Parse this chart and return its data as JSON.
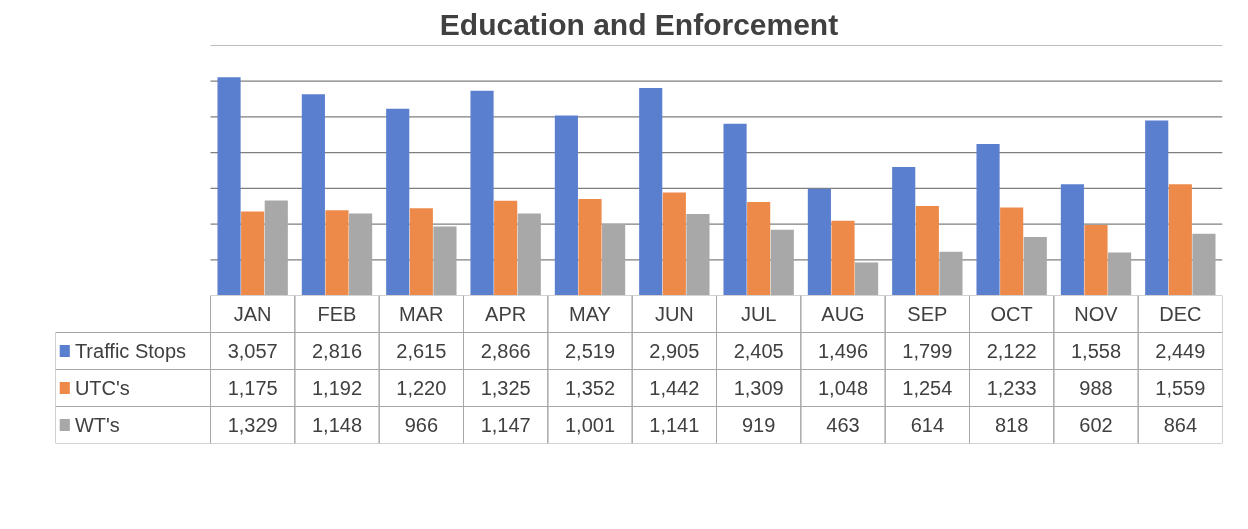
{
  "chart_data": {
    "type": "bar",
    "title": "Education and Enforcement",
    "categories": [
      "JAN",
      "FEB",
      "MAR",
      "APR",
      "MAY",
      "JUN",
      "JUL",
      "AUG",
      "SEP",
      "OCT",
      "NOV",
      "DEC"
    ],
    "series": [
      {
        "name": "Traffic Stops",
        "color": "#5b7fcf",
        "values": [
          3057,
          2816,
          2615,
          2866,
          2519,
          2905,
          2405,
          1496,
          1799,
          2122,
          1558,
          2449
        ],
        "value_labels": [
          "3,057",
          "2,816",
          "2,615",
          "2,866",
          "2,519",
          "2,905",
          "2,405",
          "1,496",
          "1,799",
          "2,122",
          "1,558",
          "2,449"
        ]
      },
      {
        "name": "UTC's",
        "color": "#ed8a4a",
        "values": [
          1175,
          1192,
          1220,
          1325,
          1352,
          1442,
          1309,
          1048,
          1254,
          1233,
          988,
          1559
        ],
        "value_labels": [
          "1,175",
          "1,192",
          "1,220",
          "1,325",
          "1,352",
          "1,442",
          "1,309",
          "1,048",
          "1,254",
          "1,233",
          "988",
          "1,559"
        ]
      },
      {
        "name": "WT's",
        "color": "#a8a8a8",
        "values": [
          1329,
          1148,
          966,
          1147,
          1001,
          1141,
          919,
          463,
          614,
          818,
          602,
          864
        ],
        "value_labels": [
          "1,329",
          "1,148",
          "966",
          "1,147",
          "1,001",
          "1,141",
          "919",
          "463",
          "614",
          "818",
          "602",
          "864"
        ]
      }
    ],
    "ylim": [
      0,
      3500
    ],
    "yticks": [
      {
        "value": 500,
        "label": null
      },
      {
        "value": 1000,
        "label": null
      },
      {
        "value": 1500,
        "label": null
      },
      {
        "value": 2000,
        "label": null
      },
      {
        "value": 2500,
        "label": null
      },
      {
        "value": 3000,
        "label": null
      },
      {
        "value": 3500,
        "label": null
      }
    ],
    "tick_labels": false,
    "grid": "y",
    "legend": "bottom",
    "data_labels": true
  }
}
